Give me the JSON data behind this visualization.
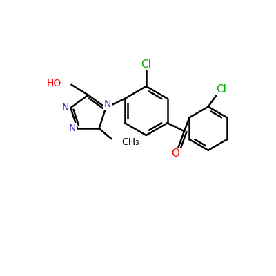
{
  "background_color": "#ffffff",
  "bond_color": "#000000",
  "bond_width": 1.8,
  "atom_colors": {
    "N": "#2222cc",
    "O": "#ff0000",
    "Cl": "#00aa00",
    "C": "#000000"
  },
  "font_size": 10,
  "fig_size": [
    4.0,
    4.0
  ],
  "dpi": 100
}
